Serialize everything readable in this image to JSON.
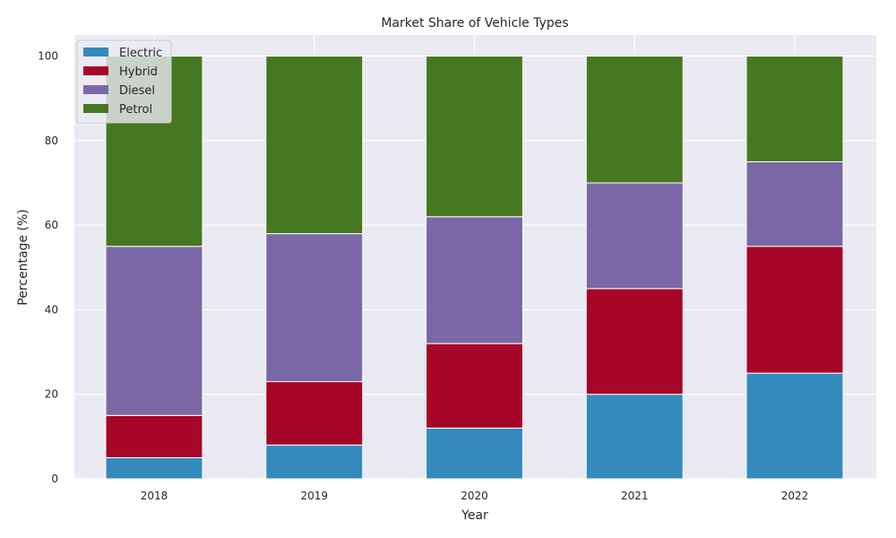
{
  "chart_data": {
    "type": "bar",
    "stacked": true,
    "title": "Market Share of Vehicle Types",
    "xlabel": "Year",
    "ylabel": "Percentage (%)",
    "categories": [
      "2018",
      "2019",
      "2020",
      "2021",
      "2022"
    ],
    "ylim": [
      0,
      105
    ],
    "yticks": [
      0,
      20,
      40,
      60,
      80,
      100
    ],
    "grid": true,
    "legend_position": "top-left",
    "series": [
      {
        "name": "Electric",
        "color": "#348abd",
        "values": [
          5,
          8,
          12,
          20,
          25
        ]
      },
      {
        "name": "Hybrid",
        "color": "#a60628",
        "values": [
          10,
          15,
          20,
          25,
          30
        ]
      },
      {
        "name": "Diesel",
        "color": "#7a68a6",
        "values": [
          40,
          35,
          30,
          25,
          20
        ]
      },
      {
        "name": "Petrol",
        "color": "#467821",
        "values": [
          45,
          42,
          38,
          30,
          25
        ]
      }
    ]
  }
}
